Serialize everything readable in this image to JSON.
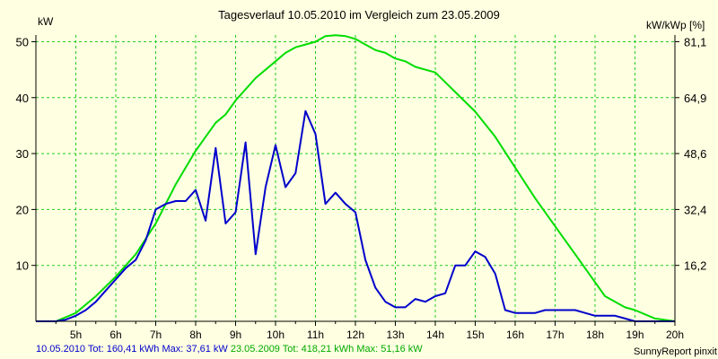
{
  "colors": {
    "background": "#ffffe1",
    "grid": "#22cc22",
    "series_2010": "#0000cc",
    "series_2009": "#00dd00"
  },
  "chart_data": {
    "type": "line",
    "title": "Tagesverlauf 10.05.2010 im Vergleich zum 23.05.2009",
    "ylabel": "kW",
    "ylabel_right": "kW/kWp [%]",
    "xlim": [
      4,
      20
    ],
    "ylim": [
      0,
      51.2
    ],
    "x_ticks": [
      5,
      6,
      7,
      8,
      9,
      10,
      11,
      12,
      13,
      14,
      15,
      16,
      17,
      18,
      19,
      20
    ],
    "x_tick_labels": [
      "5h",
      "6h",
      "7h",
      "8h",
      "9h",
      "10h",
      "11h",
      "12h",
      "13h",
      "14h",
      "15h",
      "16h",
      "17h",
      "18h",
      "19h",
      "20h"
    ],
    "y_ticks": [
      10,
      20,
      30,
      40,
      50
    ],
    "y_tick_labels": [
      "10",
      "20",
      "30",
      "40",
      "50"
    ],
    "y_right_ticks": [
      10.0,
      20.0,
      30.0,
      40.0,
      50.0
    ],
    "y_right_tick_labels": [
      "16,2",
      "32,4",
      "48,6",
      "64,9",
      "81,1"
    ],
    "grid": true,
    "series": [
      {
        "name": "10.05.2010",
        "color": "#0000cc",
        "x": [
          4.0,
          4.5,
          4.75,
          5.0,
          5.25,
          5.5,
          5.75,
          6.0,
          6.25,
          6.5,
          6.75,
          7.0,
          7.25,
          7.5,
          7.75,
          8.0,
          8.25,
          8.5,
          8.75,
          9.0,
          9.25,
          9.5,
          9.75,
          10.0,
          10.25,
          10.5,
          10.75,
          11.0,
          11.25,
          11.5,
          11.75,
          12.0,
          12.25,
          12.5,
          12.75,
          13.0,
          13.25,
          13.5,
          13.75,
          14.0,
          14.25,
          14.5,
          14.75,
          15.0,
          15.25,
          15.5,
          15.75,
          16.0,
          16.25,
          16.5,
          16.75,
          17.0,
          17.25,
          17.5,
          17.75,
          18.0,
          18.25,
          18.5,
          18.75,
          19.0,
          19.25,
          19.5,
          20.0
        ],
        "y": [
          0,
          0,
          0.3,
          1.0,
          2.0,
          3.5,
          5.5,
          7.5,
          9.5,
          11.0,
          14.5,
          20.0,
          21.0,
          21.5,
          21.5,
          23.5,
          18.0,
          31.0,
          17.5,
          19.5,
          32.0,
          12.0,
          24.0,
          31.5,
          24.0,
          26.5,
          37.6,
          33.5,
          21.0,
          23.0,
          21.0,
          19.5,
          11.0,
          6.0,
          3.5,
          2.5,
          2.5,
          4.0,
          3.5,
          4.5,
          5.0,
          10.0,
          10.0,
          12.5,
          11.5,
          8.5,
          2.0,
          1.5,
          1.5,
          1.5,
          2.0,
          2.0,
          2.0,
          2.0,
          1.5,
          1.0,
          1.0,
          1.0,
          0.5,
          0,
          0,
          0,
          0
        ]
      },
      {
        "name": "23.05.2009",
        "color": "#00dd00",
        "x": [
          4.0,
          4.5,
          5.0,
          5.5,
          6.0,
          6.5,
          7.0,
          7.5,
          8.0,
          8.25,
          8.5,
          8.75,
          9.0,
          9.5,
          10.0,
          10.25,
          10.5,
          10.75,
          11.0,
          11.25,
          11.5,
          11.75,
          12.0,
          12.25,
          12.5,
          12.75,
          13.0,
          13.25,
          13.5,
          14.0,
          14.5,
          15.0,
          15.5,
          16.0,
          16.5,
          17.0,
          17.5,
          18.0,
          18.25,
          18.5,
          18.75,
          19.0,
          19.5,
          20.0
        ],
        "y": [
          0,
          0,
          1.5,
          4.5,
          8.0,
          12.0,
          17.5,
          24.5,
          30.5,
          33.0,
          35.5,
          37.0,
          39.5,
          43.5,
          46.5,
          48.0,
          49.0,
          49.5,
          50.0,
          51.0,
          51.16,
          51.0,
          50.5,
          49.5,
          48.5,
          48.0,
          47.0,
          46.5,
          45.5,
          44.5,
          41.0,
          37.5,
          33.0,
          27.5,
          22.0,
          17.0,
          12.0,
          7.0,
          4.5,
          3.5,
          2.5,
          2.0,
          0.5,
          0
        ]
      }
    ]
  },
  "footer": {
    "summary_2010": "10.05.2010 Tot: 160,41 kWh Max: 37,61 kW",
    "summary_2009": "23.05.2009 Tot: 418,21 kWh Max: 51,16 kW",
    "credit": "SunnyReport pinxit"
  }
}
